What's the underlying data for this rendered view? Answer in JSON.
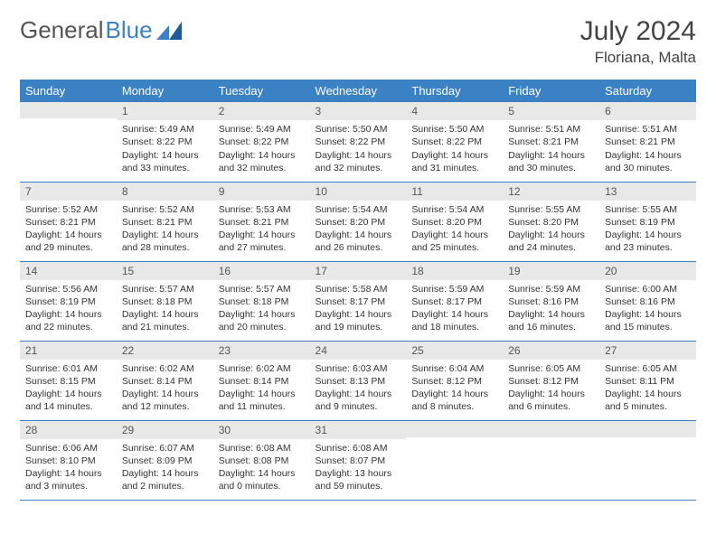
{
  "logo": {
    "text1": "General",
    "text2": "Blue"
  },
  "title": "July 2024",
  "location": "Floriana, Malta",
  "header_bg": "#3b82c4",
  "weekdays": [
    "Sunday",
    "Monday",
    "Tuesday",
    "Wednesday",
    "Thursday",
    "Friday",
    "Saturday"
  ],
  "weeks": [
    [
      {
        "day": "",
        "lines": []
      },
      {
        "day": "1",
        "lines": [
          "Sunrise: 5:49 AM",
          "Sunset: 8:22 PM",
          "Daylight: 14 hours",
          "and 33 minutes."
        ]
      },
      {
        "day": "2",
        "lines": [
          "Sunrise: 5:49 AM",
          "Sunset: 8:22 PM",
          "Daylight: 14 hours",
          "and 32 minutes."
        ]
      },
      {
        "day": "3",
        "lines": [
          "Sunrise: 5:50 AM",
          "Sunset: 8:22 PM",
          "Daylight: 14 hours",
          "and 32 minutes."
        ]
      },
      {
        "day": "4",
        "lines": [
          "Sunrise: 5:50 AM",
          "Sunset: 8:22 PM",
          "Daylight: 14 hours",
          "and 31 minutes."
        ]
      },
      {
        "day": "5",
        "lines": [
          "Sunrise: 5:51 AM",
          "Sunset: 8:21 PM",
          "Daylight: 14 hours",
          "and 30 minutes."
        ]
      },
      {
        "day": "6",
        "lines": [
          "Sunrise: 5:51 AM",
          "Sunset: 8:21 PM",
          "Daylight: 14 hours",
          "and 30 minutes."
        ]
      }
    ],
    [
      {
        "day": "7",
        "lines": [
          "Sunrise: 5:52 AM",
          "Sunset: 8:21 PM",
          "Daylight: 14 hours",
          "and 29 minutes."
        ]
      },
      {
        "day": "8",
        "lines": [
          "Sunrise: 5:52 AM",
          "Sunset: 8:21 PM",
          "Daylight: 14 hours",
          "and 28 minutes."
        ]
      },
      {
        "day": "9",
        "lines": [
          "Sunrise: 5:53 AM",
          "Sunset: 8:21 PM",
          "Daylight: 14 hours",
          "and 27 minutes."
        ]
      },
      {
        "day": "10",
        "lines": [
          "Sunrise: 5:54 AM",
          "Sunset: 8:20 PM",
          "Daylight: 14 hours",
          "and 26 minutes."
        ]
      },
      {
        "day": "11",
        "lines": [
          "Sunrise: 5:54 AM",
          "Sunset: 8:20 PM",
          "Daylight: 14 hours",
          "and 25 minutes."
        ]
      },
      {
        "day": "12",
        "lines": [
          "Sunrise: 5:55 AM",
          "Sunset: 8:20 PM",
          "Daylight: 14 hours",
          "and 24 minutes."
        ]
      },
      {
        "day": "13",
        "lines": [
          "Sunrise: 5:55 AM",
          "Sunset: 8:19 PM",
          "Daylight: 14 hours",
          "and 23 minutes."
        ]
      }
    ],
    [
      {
        "day": "14",
        "lines": [
          "Sunrise: 5:56 AM",
          "Sunset: 8:19 PM",
          "Daylight: 14 hours",
          "and 22 minutes."
        ]
      },
      {
        "day": "15",
        "lines": [
          "Sunrise: 5:57 AM",
          "Sunset: 8:18 PM",
          "Daylight: 14 hours",
          "and 21 minutes."
        ]
      },
      {
        "day": "16",
        "lines": [
          "Sunrise: 5:57 AM",
          "Sunset: 8:18 PM",
          "Daylight: 14 hours",
          "and 20 minutes."
        ]
      },
      {
        "day": "17",
        "lines": [
          "Sunrise: 5:58 AM",
          "Sunset: 8:17 PM",
          "Daylight: 14 hours",
          "and 19 minutes."
        ]
      },
      {
        "day": "18",
        "lines": [
          "Sunrise: 5:59 AM",
          "Sunset: 8:17 PM",
          "Daylight: 14 hours",
          "and 18 minutes."
        ]
      },
      {
        "day": "19",
        "lines": [
          "Sunrise: 5:59 AM",
          "Sunset: 8:16 PM",
          "Daylight: 14 hours",
          "and 16 minutes."
        ]
      },
      {
        "day": "20",
        "lines": [
          "Sunrise: 6:00 AM",
          "Sunset: 8:16 PM",
          "Daylight: 14 hours",
          "and 15 minutes."
        ]
      }
    ],
    [
      {
        "day": "21",
        "lines": [
          "Sunrise: 6:01 AM",
          "Sunset: 8:15 PM",
          "Daylight: 14 hours",
          "and 14 minutes."
        ]
      },
      {
        "day": "22",
        "lines": [
          "Sunrise: 6:02 AM",
          "Sunset: 8:14 PM",
          "Daylight: 14 hours",
          "and 12 minutes."
        ]
      },
      {
        "day": "23",
        "lines": [
          "Sunrise: 6:02 AM",
          "Sunset: 8:14 PM",
          "Daylight: 14 hours",
          "and 11 minutes."
        ]
      },
      {
        "day": "24",
        "lines": [
          "Sunrise: 6:03 AM",
          "Sunset: 8:13 PM",
          "Daylight: 14 hours",
          "and 9 minutes."
        ]
      },
      {
        "day": "25",
        "lines": [
          "Sunrise: 6:04 AM",
          "Sunset: 8:12 PM",
          "Daylight: 14 hours",
          "and 8 minutes."
        ]
      },
      {
        "day": "26",
        "lines": [
          "Sunrise: 6:05 AM",
          "Sunset: 8:12 PM",
          "Daylight: 14 hours",
          "and 6 minutes."
        ]
      },
      {
        "day": "27",
        "lines": [
          "Sunrise: 6:05 AM",
          "Sunset: 8:11 PM",
          "Daylight: 14 hours",
          "and 5 minutes."
        ]
      }
    ],
    [
      {
        "day": "28",
        "lines": [
          "Sunrise: 6:06 AM",
          "Sunset: 8:10 PM",
          "Daylight: 14 hours",
          "and 3 minutes."
        ]
      },
      {
        "day": "29",
        "lines": [
          "Sunrise: 6:07 AM",
          "Sunset: 8:09 PM",
          "Daylight: 14 hours",
          "and 2 minutes."
        ]
      },
      {
        "day": "30",
        "lines": [
          "Sunrise: 6:08 AM",
          "Sunset: 8:08 PM",
          "Daylight: 14 hours",
          "and 0 minutes."
        ]
      },
      {
        "day": "31",
        "lines": [
          "Sunrise: 6:08 AM",
          "Sunset: 8:07 PM",
          "Daylight: 13 hours",
          "and 59 minutes."
        ]
      },
      {
        "day": "",
        "lines": []
      },
      {
        "day": "",
        "lines": []
      },
      {
        "day": "",
        "lines": []
      }
    ]
  ]
}
